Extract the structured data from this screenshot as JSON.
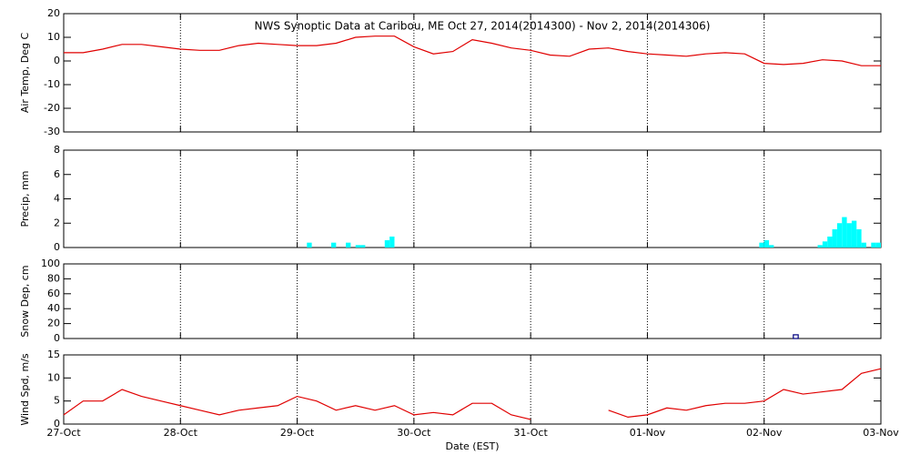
{
  "chart_data": [
    {
      "type": "line",
      "title": "NWS Synoptic Data at Caribou, ME   Oct 27, 2014(2014300) - Nov  2, 2014(2014306)",
      "y_label": "Air Temp, Deg C",
      "color": "#e00000",
      "x": [
        0,
        4,
        8,
        12,
        16,
        20,
        24,
        28,
        32,
        36,
        40,
        44,
        48,
        52,
        56,
        60,
        64,
        68,
        72,
        76,
        80,
        84,
        88,
        92,
        96,
        100,
        104,
        108,
        112,
        116,
        120,
        124,
        128,
        132,
        136,
        140,
        144,
        148,
        152,
        156,
        160,
        164,
        168
      ],
      "values": [
        3.5,
        3.5,
        5,
        7,
        7,
        6,
        5,
        4.5,
        4.5,
        6.5,
        7.5,
        7,
        6.5,
        6.5,
        7.5,
        10,
        10.5,
        10.5,
        6,
        3,
        4,
        9,
        7.5,
        5.5,
        4.5,
        2.5,
        2,
        5,
        5.5,
        4,
        3,
        2.5,
        2,
        3,
        3.5,
        3,
        -1,
        -1.5,
        -1,
        0.5,
        0,
        -2,
        -2
      ],
      "ylim": [
        -30,
        20
      ],
      "yticks": [
        -30,
        -20,
        -10,
        0,
        10,
        20
      ]
    },
    {
      "type": "bar",
      "y_label": "Precip, mm",
      "color": "#00ffff",
      "filled": true,
      "x": [
        50,
        55,
        58,
        60,
        61,
        66,
        67,
        143,
        144,
        145,
        155,
        156,
        157,
        158,
        159,
        160,
        161,
        162,
        163,
        164,
        166,
        167
      ],
      "values": [
        0.4,
        0.4,
        0.4,
        0.2,
        0.2,
        0.6,
        0.9,
        0.4,
        0.6,
        0.2,
        0.2,
        0.5,
        0.9,
        1.5,
        2.0,
        2.5,
        2.0,
        2.2,
        1.5,
        0.4,
        0.4,
        0.4
      ],
      "ylim": [
        0,
        8
      ],
      "yticks": [
        0,
        2,
        4,
        6,
        8
      ]
    },
    {
      "type": "bar",
      "y_label": "Snow Dep, cm",
      "color": "#000080",
      "filled": false,
      "x": [
        150
      ],
      "values": [
        5
      ],
      "ylim": [
        0,
        100
      ],
      "yticks": [
        0,
        20,
        40,
        60,
        80,
        100
      ]
    },
    {
      "type": "line",
      "y_label": "Wind Spd, m/s",
      "x_label": "Date (EST)",
      "color": "#e00000",
      "x": [
        0,
        4,
        8,
        12,
        16,
        20,
        24,
        28,
        32,
        36,
        40,
        44,
        48,
        52,
        56,
        60,
        64,
        68,
        72,
        76,
        80,
        84,
        88,
        92,
        96,
        100,
        104,
        108,
        112,
        116,
        120,
        124,
        128,
        132,
        136,
        140,
        144,
        148,
        152,
        156,
        160,
        164,
        168
      ],
      "values": [
        2,
        5,
        5,
        7.5,
        6,
        5,
        4,
        3,
        2,
        3,
        3.5,
        4,
        6,
        5,
        3,
        4,
        3,
        4,
        2,
        2.5,
        2,
        4.5,
        4.5,
        2,
        1,
        null,
        null,
        null,
        3,
        1.5,
        2,
        3.5,
        3,
        4,
        4.5,
        4.5,
        5,
        7.5,
        6.5,
        7,
        7.5,
        11,
        12
      ],
      "ylim": [
        0,
        15
      ],
      "yticks": [
        0,
        5,
        10,
        15
      ],
      "xlim": [
        0,
        168
      ],
      "xticks": [
        {
          "value": 0,
          "label": "27-Oct"
        },
        {
          "value": 24,
          "label": "28-Oct"
        },
        {
          "value": 48,
          "label": "29-Oct"
        },
        {
          "value": 72,
          "label": "30-Oct"
        },
        {
          "value": 96,
          "label": "31-Oct"
        },
        {
          "value": 120,
          "label": "01-Nov"
        },
        {
          "value": 144,
          "label": "02-Nov"
        },
        {
          "value": 168,
          "label": "03-Nov"
        }
      ]
    }
  ]
}
